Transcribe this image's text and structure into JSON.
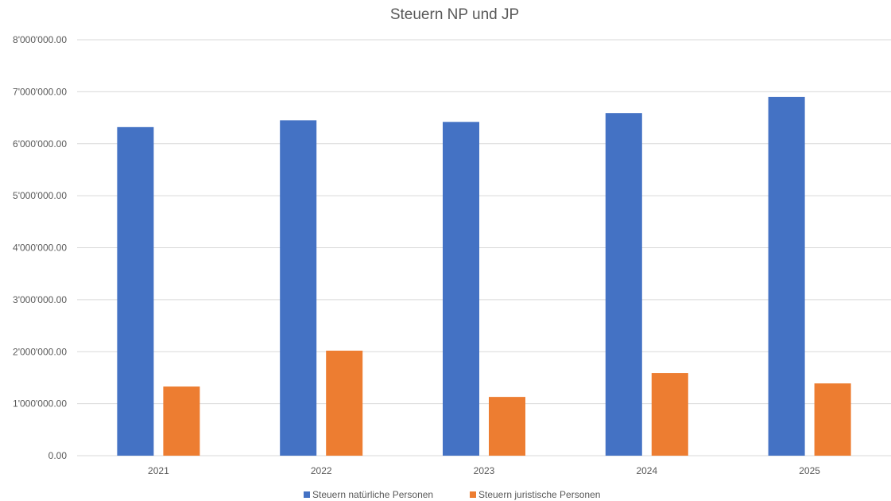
{
  "chart_data": {
    "type": "bar",
    "title": "Steuern NP und JP",
    "xlabel": "",
    "ylabel": "",
    "categories": [
      "2021",
      "2022",
      "2023",
      "2024",
      "2025"
    ],
    "series": [
      {
        "name": "Steuern natürliche Personen",
        "color": "#4472C4",
        "values": [
          6320000,
          6450000,
          6420000,
          6590000,
          6900000
        ]
      },
      {
        "name": "Steuern juristische Personen",
        "color": "#ED7D31",
        "values": [
          1330000,
          2020000,
          1130000,
          1590000,
          1390000
        ]
      }
    ],
    "ylim": [
      0,
      8000000
    ],
    "yticks": [
      {
        "value": 0,
        "label": "0.00"
      },
      {
        "value": 1000000,
        "label": "1'000'000.00"
      },
      {
        "value": 2000000,
        "label": "2'000'000.00"
      },
      {
        "value": 3000000,
        "label": "3'000'000.00"
      },
      {
        "value": 4000000,
        "label": "4'000'000.00"
      },
      {
        "value": 5000000,
        "label": "5'000'000.00"
      },
      {
        "value": 6000000,
        "label": "6'000'000.00"
      },
      {
        "value": 7000000,
        "label": "7'000'000.00"
      },
      {
        "value": 8000000,
        "label": "8'000'000.00"
      }
    ],
    "grid": true,
    "legend_position": "bottom",
    "gridline_color": "#D9D9D9",
    "text_color": "#595959"
  }
}
